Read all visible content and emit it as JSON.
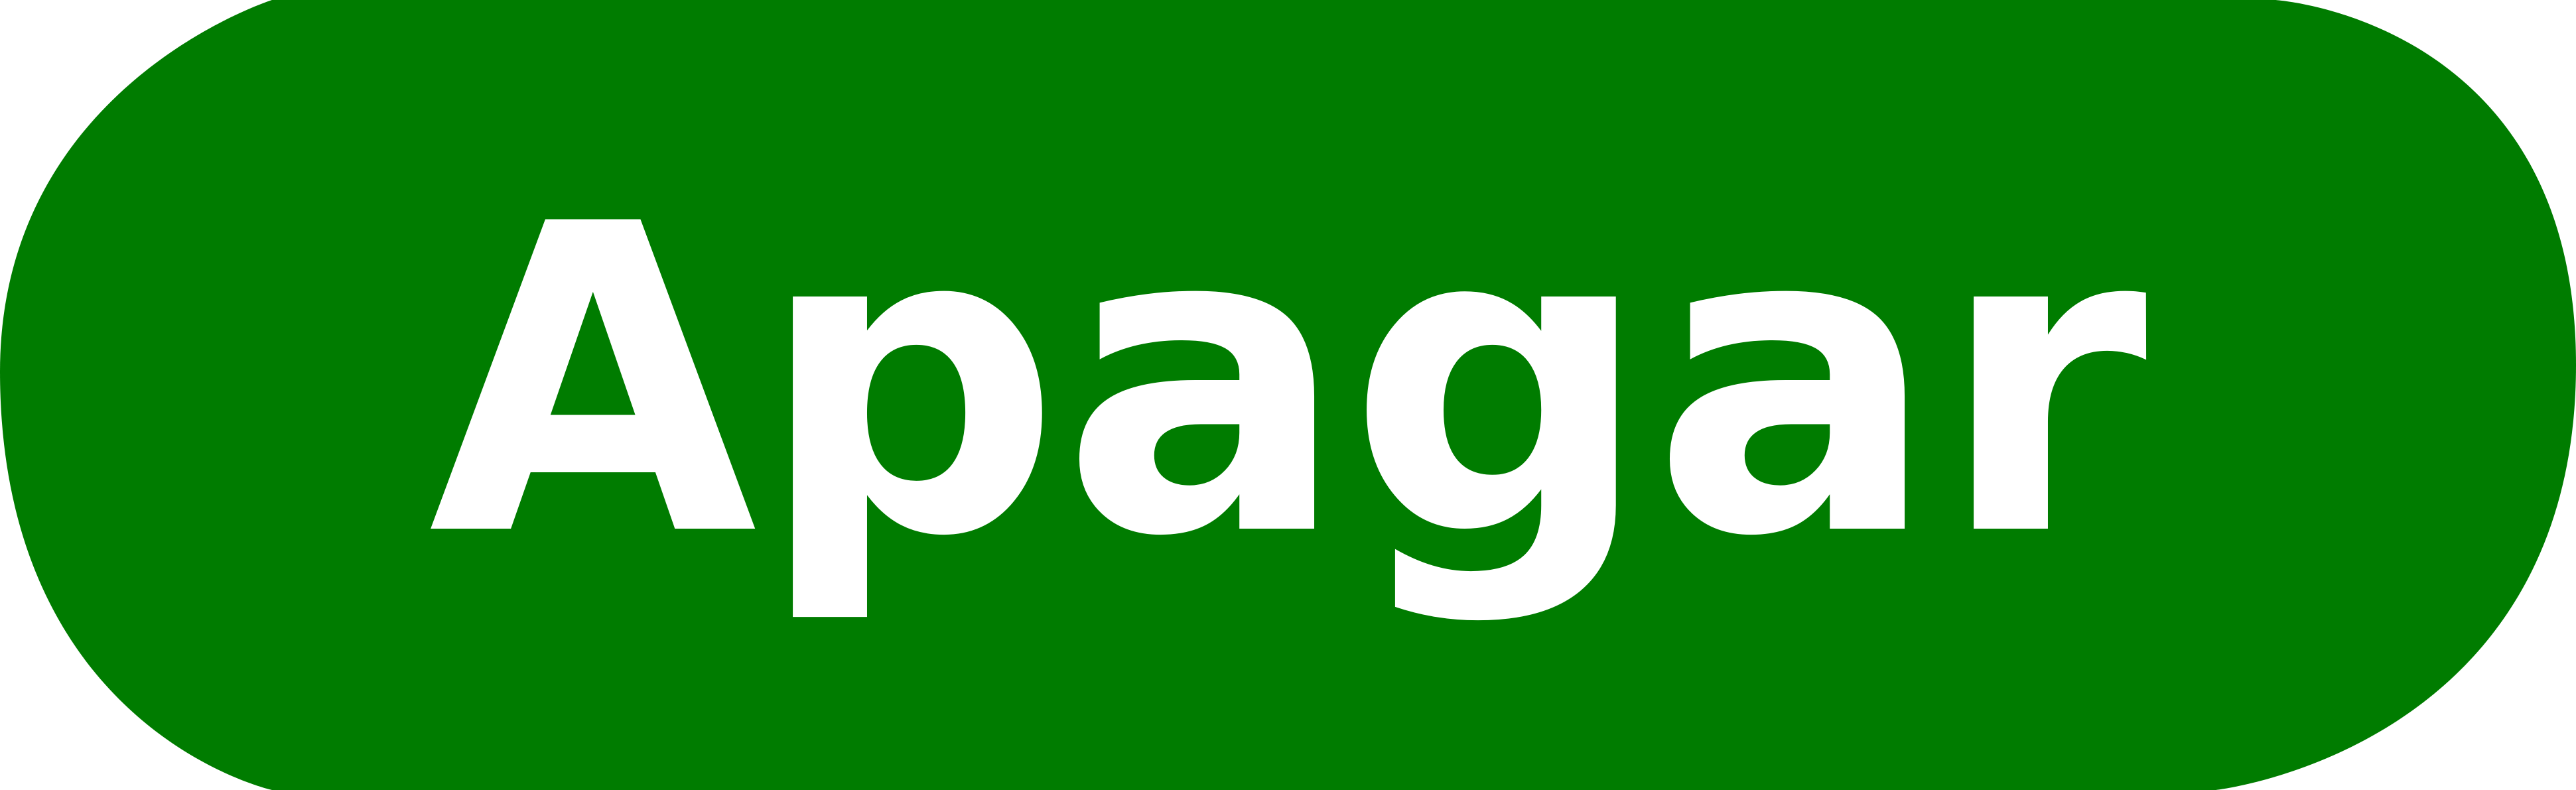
{
  "button": {
    "label": "Apagar",
    "background_color": "#007C00",
    "text_color": "#FFFFFF"
  }
}
